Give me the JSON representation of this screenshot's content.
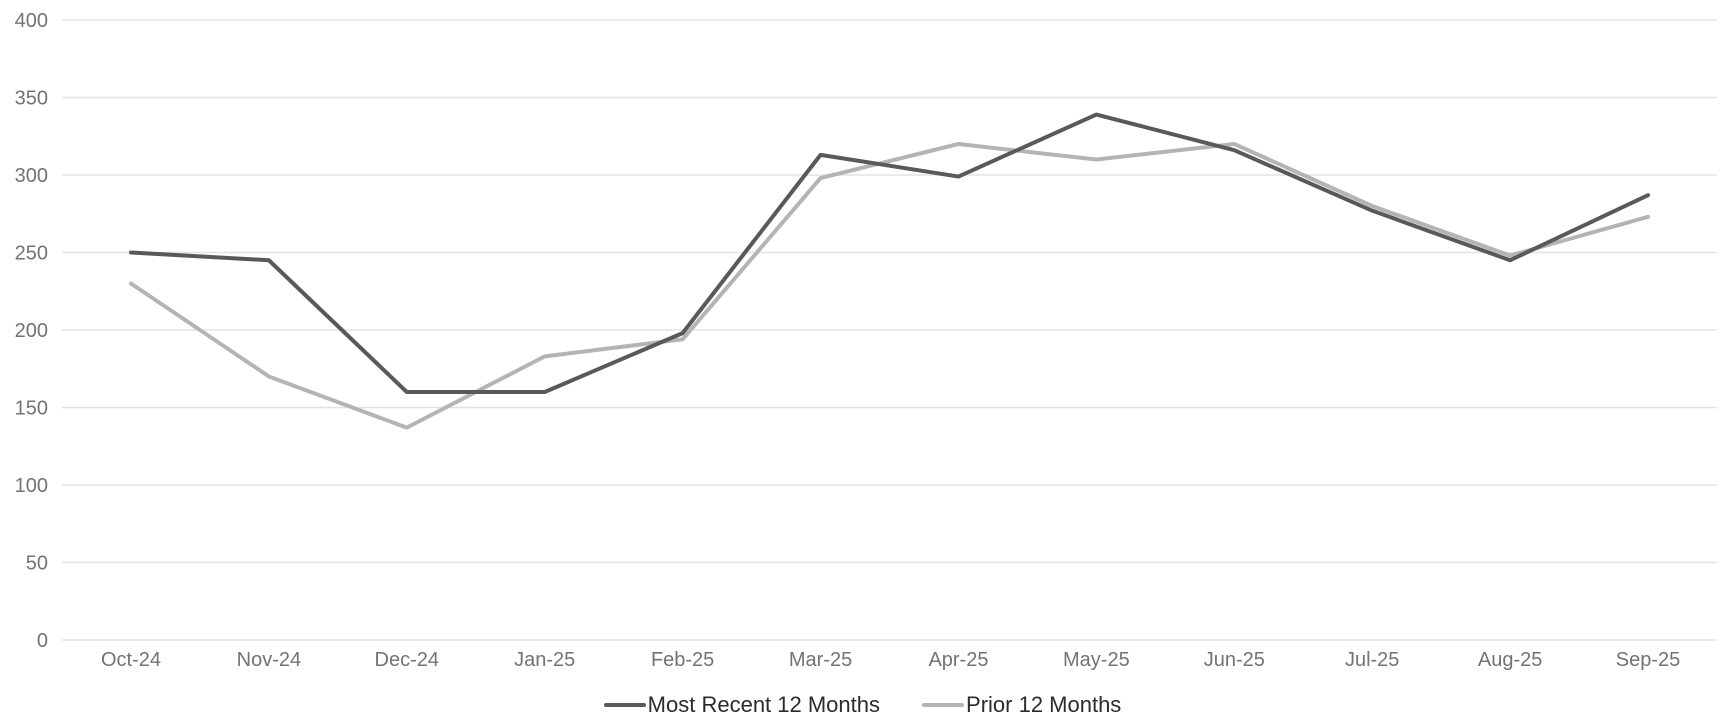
{
  "chart_data": {
    "type": "line",
    "title": "",
    "categories": [
      "Oct-24",
      "Nov-24",
      "Dec-24",
      "Jan-25",
      "Feb-25",
      "Mar-25",
      "Apr-25",
      "May-25",
      "Jun-25",
      "Jul-25",
      "Aug-25",
      "Sep-25"
    ],
    "series": [
      {
        "name": "Most Recent 12 Months",
        "color": "#595959",
        "values": [
          250,
          245,
          160,
          160,
          198,
          313,
          299,
          339,
          316,
          277,
          245,
          287
        ]
      },
      {
        "name": "Prior 12 Months",
        "color": "#b4b4b4",
        "values": [
          230,
          170,
          137,
          183,
          194,
          298,
          320,
          310,
          320,
          280,
          248,
          273
        ]
      }
    ],
    "xlabel": "",
    "ylabel": "",
    "ylim": [
      0,
      400
    ],
    "y_ticks": [
      0,
      50,
      100,
      150,
      200,
      250,
      300,
      350,
      400
    ],
    "grid": "horizontal",
    "legend_position": "bottom"
  },
  "colors": {
    "background": "#ffffff",
    "gridline": "#e3e3e3",
    "axis_text": "#737373",
    "legend_text": "#2b2b2b"
  }
}
